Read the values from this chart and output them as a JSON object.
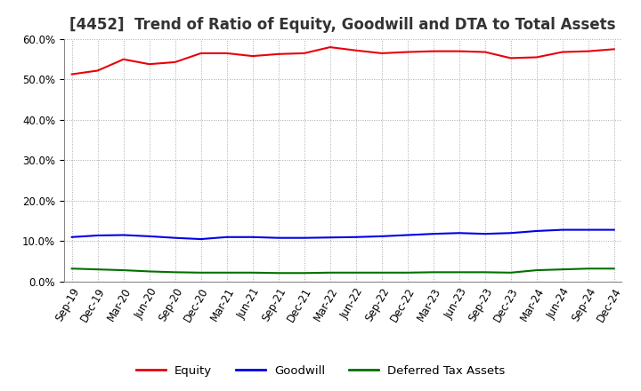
{
  "title": "[4452]  Trend of Ratio of Equity, Goodwill and DTA to Total Assets",
  "x_labels": [
    "Sep-19",
    "Dec-19",
    "Mar-20",
    "Jun-20",
    "Sep-20",
    "Dec-20",
    "Mar-21",
    "Jun-21",
    "Sep-21",
    "Dec-21",
    "Mar-22",
    "Jun-22",
    "Sep-22",
    "Dec-22",
    "Mar-23",
    "Jun-23",
    "Sep-23",
    "Dec-23",
    "Mar-24",
    "Jun-24",
    "Sep-24",
    "Dec-24"
  ],
  "equity": [
    51.3,
    52.2,
    55.0,
    53.8,
    54.3,
    56.5,
    56.5,
    55.8,
    56.3,
    56.5,
    58.0,
    57.2,
    56.5,
    56.8,
    57.0,
    57.0,
    56.8,
    55.3,
    55.5,
    56.8,
    57.0,
    57.5
  ],
  "goodwill": [
    11.0,
    11.4,
    11.5,
    11.2,
    10.8,
    10.5,
    11.0,
    11.0,
    10.8,
    10.8,
    10.9,
    11.0,
    11.2,
    11.5,
    11.8,
    12.0,
    11.8,
    12.0,
    12.5,
    12.8,
    12.8,
    12.8
  ],
  "dta": [
    3.2,
    3.0,
    2.8,
    2.5,
    2.3,
    2.2,
    2.2,
    2.2,
    2.1,
    2.1,
    2.2,
    2.2,
    2.2,
    2.2,
    2.3,
    2.3,
    2.3,
    2.2,
    2.8,
    3.0,
    3.2,
    3.2
  ],
  "equity_color": "#e8000a",
  "goodwill_color": "#0000e8",
  "dta_color": "#007000",
  "background_color": "#ffffff",
  "grid_color": "#aaaaaa",
  "ylim": [
    0,
    60
  ],
  "yticks": [
    0,
    10,
    20,
    30,
    40,
    50,
    60
  ],
  "legend_labels": [
    "Equity",
    "Goodwill",
    "Deferred Tax Assets"
  ],
  "title_fontsize": 12,
  "title_color": "#333333",
  "axis_fontsize": 8.5,
  "legend_fontsize": 9.5
}
